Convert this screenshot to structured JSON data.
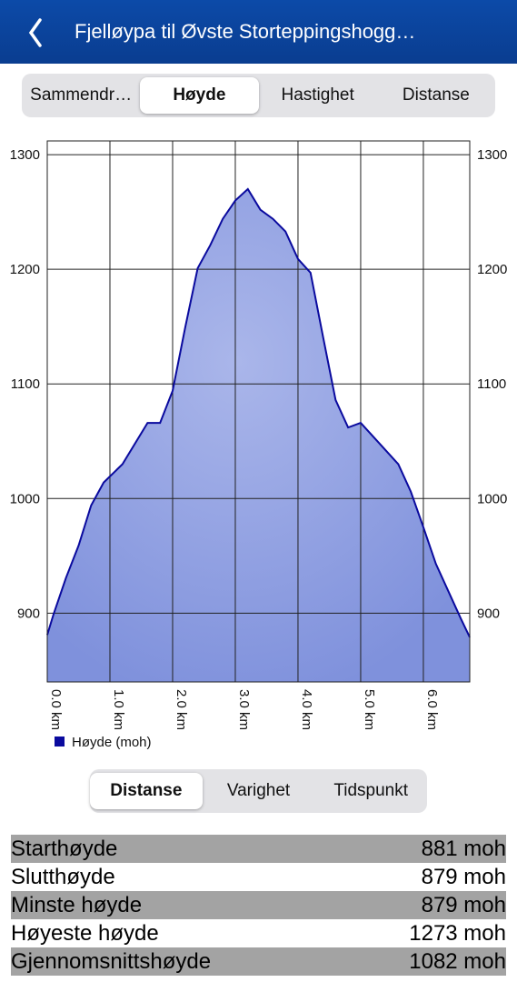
{
  "header": {
    "title": "Fjelløypa til Øvste Storteppingshogg…"
  },
  "tabs": [
    "Sammendr…",
    "Høyde",
    "Hastighet",
    "Distanse"
  ],
  "chart_data": {
    "type": "area",
    "x": [
      0,
      0.1,
      0.3,
      0.5,
      0.7,
      0.9,
      1.2,
      1.6,
      1.8,
      2.0,
      2.2,
      2.4,
      2.6,
      2.8,
      3.0,
      3.2,
      3.4,
      3.6,
      3.8,
      4.0,
      4.2,
      4.4,
      4.6,
      4.8,
      5.0,
      5.2,
      5.4,
      5.6,
      5.8,
      6.0,
      6.2,
      6.4,
      6.6,
      6.74
    ],
    "series": [
      {
        "name": "Høyde (moh)",
        "color": "#0a0a9e",
        "values": [
          881,
          899,
          931,
          959,
          994,
          1014,
          1030,
          1066,
          1066,
          1094,
          1149,
          1201,
          1221,
          1244,
          1260,
          1270,
          1252,
          1244,
          1233,
          1209,
          1197,
          1141,
          1086,
          1062,
          1066,
          1054,
          1042,
          1030,
          1006,
          975,
          943,
          919,
          895,
          879
        ]
      }
    ],
    "xlim": [
      0,
      6.74
    ],
    "ylim": [
      840,
      1312
    ],
    "xticks": [
      {
        "value": 0,
        "label": "0.0 km"
      },
      {
        "value": 1,
        "label": "1.0 km"
      },
      {
        "value": 2,
        "label": "2.0 km"
      },
      {
        "value": 3,
        "label": "3.0 km"
      },
      {
        "value": 4,
        "label": "4.0 km"
      },
      {
        "value": 5,
        "label": "5.0 km"
      },
      {
        "value": 6,
        "label": "6.0 km"
      }
    ],
    "yticks": [
      900,
      1000,
      1100,
      1200,
      1300
    ],
    "grid": true
  },
  "mode_tabs": [
    "Distanse",
    "Varighet",
    "Tidspunkt"
  ],
  "stats": {
    "rows": [
      [
        "Starthøyde",
        "881 moh"
      ],
      [
        "Slutthøyde",
        "879 moh"
      ],
      [
        "Minste høyde",
        "879 moh"
      ],
      [
        "Høyeste høyde",
        "1273 moh"
      ],
      [
        "Gjennomsnittshøyde",
        "1082 moh"
      ]
    ]
  }
}
